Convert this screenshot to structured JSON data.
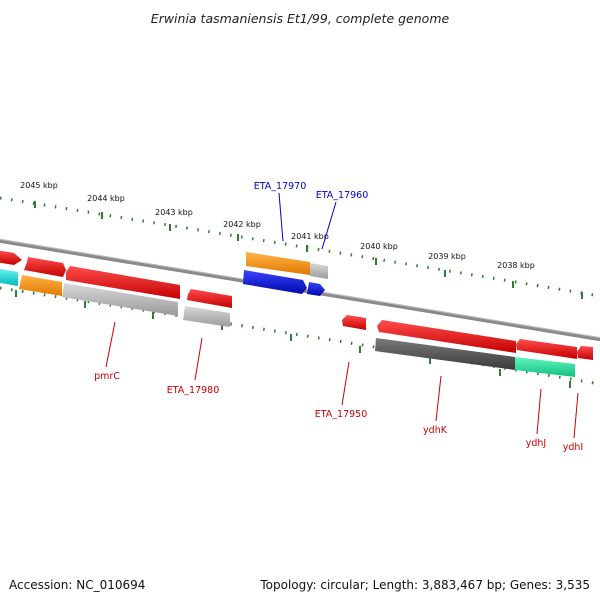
{
  "title": "Erwinia tasmaniensis Et1/99, complete genome",
  "colors": {
    "backbone": "#8a8a8a",
    "tick": "#2f7d2f",
    "gene_red": "#ff1a1a",
    "gene_orange": "#ff9a14",
    "gene_gray": "#b8b8b8",
    "gene_darkgray": "#5a5a5a",
    "gene_blue": "#0a14e6",
    "gene_cyan": "#19e6e6",
    "gene_green": "#29e6a0",
    "label_red": "#c80000",
    "label_blue": "#0000c8"
  },
  "scale_labels": [
    "2045 kbp",
    "2044 kbp",
    "2043 kbp",
    "2042 kbp",
    "2041 kbp",
    "2040 kbp",
    "2039 kbp",
    "2038 kbp"
  ],
  "gene_labels": [
    {
      "text": "ETA_17970",
      "color": "blue"
    },
    {
      "text": "ETA_17960",
      "color": "blue"
    },
    {
      "text": "pmrC",
      "color": "red"
    },
    {
      "text": "ETA_17980",
      "color": "red"
    },
    {
      "text": "ETA_17950",
      "color": "red"
    },
    {
      "text": "ydhK",
      "color": "red"
    },
    {
      "text": "ydhJ",
      "color": "red"
    },
    {
      "text": "ydhI",
      "color": "red"
    }
  ],
  "footer": {
    "accession": "Accession: NC_010694",
    "topology": "Topology: circular; Length: 3,883,467 bp; Genes: 3,535"
  }
}
